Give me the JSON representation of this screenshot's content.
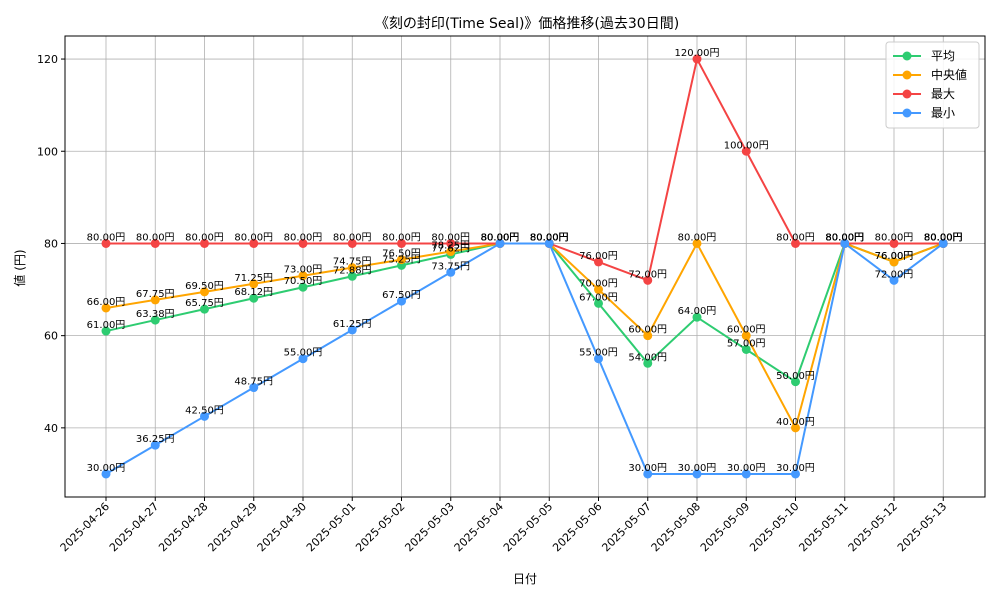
{
  "chart_data": {
    "type": "line",
    "title": "《刻の封印(Time Seal)》価格推移(過去30日間)",
    "xlabel": "日付",
    "ylabel": "値 (円)",
    "ylim": [
      25,
      125
    ],
    "yticks": [
      40,
      60,
      80,
      100,
      120
    ],
    "grid": true,
    "legend_position": "top-right",
    "value_suffix": "円",
    "categories": [
      "2025-04-26",
      "2025-04-27",
      "2025-04-28",
      "2025-04-29",
      "2025-04-30",
      "2025-05-01",
      "2025-05-02",
      "2025-05-03",
      "2025-05-04",
      "2025-05-05",
      "2025-05-06",
      "2025-05-07",
      "2025-05-08",
      "2025-05-09",
      "2025-05-10",
      "2025-05-11",
      "2025-05-12",
      "2025-05-13"
    ],
    "series": [
      {
        "name": "平均",
        "color": "#2ecc71",
        "values": [
          61.0,
          63.38,
          65.75,
          68.12,
          70.5,
          72.88,
          75.25,
          77.62,
          80.0,
          80.0,
          67.0,
          54.0,
          64.0,
          57.0,
          50.0,
          80.0,
          76.0,
          80.0
        ]
      },
      {
        "name": "中央値",
        "color": "#ffa500",
        "values": [
          66.0,
          67.75,
          69.5,
          71.25,
          73.0,
          74.75,
          76.5,
          78.25,
          80.0,
          80.0,
          70.0,
          60.0,
          80.0,
          60.0,
          40.0,
          80.0,
          76.0,
          80.0
        ]
      },
      {
        "name": "最大",
        "color": "#f44444",
        "values": [
          80.0,
          80.0,
          80.0,
          80.0,
          80.0,
          80.0,
          80.0,
          80.0,
          80.0,
          80.0,
          76.0,
          72.0,
          120.0,
          100.0,
          80.0,
          80.0,
          80.0,
          80.0
        ]
      },
      {
        "name": "最小",
        "color": "#4499ff",
        "values": [
          30.0,
          36.25,
          42.5,
          48.75,
          55.0,
          61.25,
          67.5,
          73.75,
          80.0,
          80.0,
          55.0,
          30.0,
          30.0,
          30.0,
          30.0,
          80.0,
          72.0,
          80.0
        ]
      }
    ]
  }
}
